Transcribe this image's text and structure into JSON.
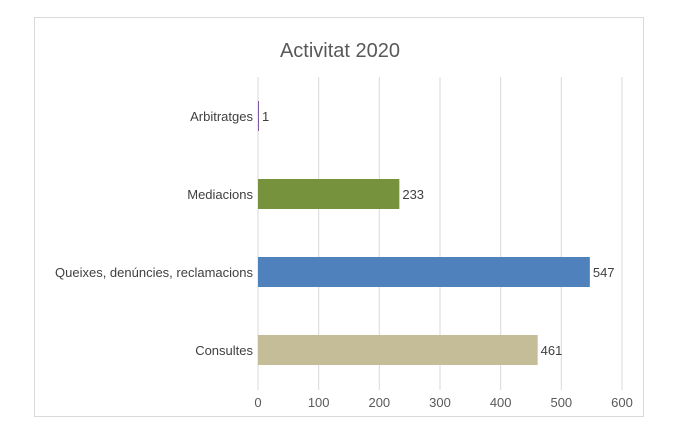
{
  "chart_data": {
    "type": "bar",
    "orientation": "horizontal",
    "title": "Activitat 2020",
    "categories": [
      "Arbitratges",
      "Mediacions",
      "Queixes, denúncies, reclamacions",
      "Consultes"
    ],
    "values": [
      1,
      233,
      547,
      461
    ],
    "colors": [
      "#7c5aa3",
      "#76923c",
      "#4f81bd",
      "#c4bd97"
    ],
    "xlabel": "",
    "ylabel": "",
    "xlim": [
      0,
      600
    ],
    "ticks": [
      0,
      100,
      200,
      300,
      400,
      500,
      600
    ],
    "grid": true,
    "legend": "none",
    "data_labels": [
      "1",
      "233",
      "547",
      "461"
    ]
  }
}
